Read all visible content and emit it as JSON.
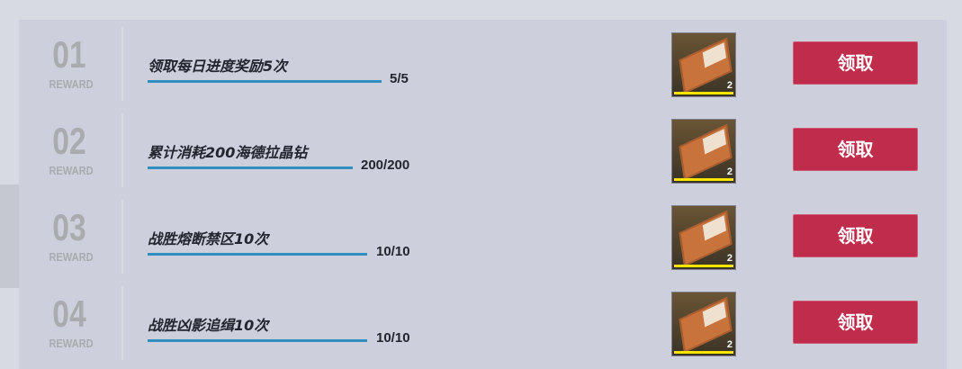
{
  "tasks": [
    {
      "index": "01",
      "tag": "REWARD",
      "title": "领取每日进度奖励5次",
      "progress": "5/5",
      "completion": 1.0,
      "reward_count": "2",
      "button": "领取"
    },
    {
      "index": "02",
      "tag": "REWARD",
      "title": "累计消耗200海德拉晶钻",
      "progress": "200/200",
      "completion": 1.0,
      "reward_count": "2",
      "button": "领取"
    },
    {
      "index": "03",
      "tag": "REWARD",
      "title": "战胜熔断禁区10次",
      "progress": "10/10",
      "completion": 1.0,
      "reward_count": "2",
      "button": "领取"
    },
    {
      "index": "04",
      "tag": "REWARD",
      "title": "战胜凶影追缉10次",
      "progress": "10/10",
      "completion": 1.0,
      "reward_count": "2",
      "button": "领取"
    }
  ],
  "colors": {
    "button": "#bf2c4c",
    "progress_bar": "#2e8fbf",
    "rarity_bar": "#ffe600"
  }
}
